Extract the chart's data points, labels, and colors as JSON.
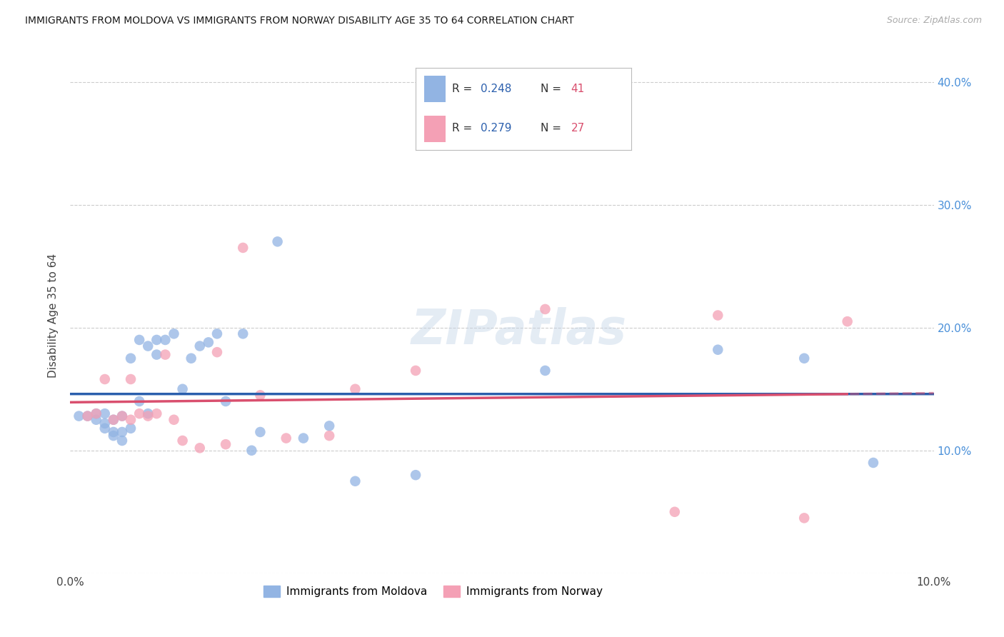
{
  "title": "IMMIGRANTS FROM MOLDOVA VS IMMIGRANTS FROM NORWAY DISABILITY AGE 35 TO 64 CORRELATION CHART",
  "source": "Source: ZipAtlas.com",
  "ylabel": "Disability Age 35 to 64",
  "xlim": [
    0.0,
    0.1
  ],
  "ylim": [
    0.0,
    0.42
  ],
  "xticks": [
    0.0,
    0.02,
    0.04,
    0.06,
    0.08,
    0.1
  ],
  "yticks": [
    0.0,
    0.1,
    0.2,
    0.3,
    0.4
  ],
  "xtick_labels": [
    "0.0%",
    "",
    "",
    "",
    "",
    "10.0%"
  ],
  "ytick_labels_left": [
    "",
    "",
    "",
    "",
    ""
  ],
  "ytick_labels_right": [
    "",
    "10.0%",
    "20.0%",
    "30.0%",
    "40.0%"
  ],
  "moldova_color": "#92b4e3",
  "norway_color": "#f4a0b5",
  "moldova_line_color": "#2b5fad",
  "norway_line_color": "#d94f6e",
  "moldova_R": "0.248",
  "moldova_N": "41",
  "norway_R": "0.279",
  "norway_N": "27",
  "legend_R_color": "#2b5fad",
  "legend_N_color": "#d94f6e",
  "watermark_text": "ZIPatlas",
  "moldova_scatter_x": [
    0.001,
    0.002,
    0.003,
    0.003,
    0.004,
    0.004,
    0.004,
    0.005,
    0.005,
    0.005,
    0.006,
    0.006,
    0.006,
    0.007,
    0.007,
    0.008,
    0.008,
    0.009,
    0.009,
    0.01,
    0.01,
    0.011,
    0.012,
    0.013,
    0.014,
    0.015,
    0.016,
    0.017,
    0.018,
    0.02,
    0.021,
    0.022,
    0.024,
    0.027,
    0.03,
    0.033,
    0.04,
    0.055,
    0.075,
    0.085,
    0.093
  ],
  "moldova_scatter_y": [
    0.128,
    0.128,
    0.125,
    0.13,
    0.118,
    0.122,
    0.13,
    0.112,
    0.115,
    0.125,
    0.108,
    0.115,
    0.128,
    0.118,
    0.175,
    0.14,
    0.19,
    0.185,
    0.13,
    0.178,
    0.19,
    0.19,
    0.195,
    0.15,
    0.175,
    0.185,
    0.188,
    0.195,
    0.14,
    0.195,
    0.1,
    0.115,
    0.27,
    0.11,
    0.12,
    0.075,
    0.08,
    0.165,
    0.182,
    0.175,
    0.09
  ],
  "norway_scatter_x": [
    0.002,
    0.003,
    0.004,
    0.005,
    0.006,
    0.007,
    0.007,
    0.008,
    0.009,
    0.01,
    0.011,
    0.012,
    0.013,
    0.015,
    0.017,
    0.018,
    0.02,
    0.022,
    0.025,
    0.03,
    0.033,
    0.04,
    0.055,
    0.07,
    0.075,
    0.085,
    0.09
  ],
  "norway_scatter_y": [
    0.128,
    0.13,
    0.158,
    0.125,
    0.128,
    0.158,
    0.125,
    0.13,
    0.128,
    0.13,
    0.178,
    0.125,
    0.108,
    0.102,
    0.18,
    0.105,
    0.265,
    0.145,
    0.11,
    0.112,
    0.15,
    0.165,
    0.215,
    0.05,
    0.21,
    0.045,
    0.205
  ],
  "background_color": "#ffffff",
  "grid_color": "#cccccc",
  "legend_bottom_labels": [
    "Immigrants from Moldova",
    "Immigrants from Norway"
  ]
}
